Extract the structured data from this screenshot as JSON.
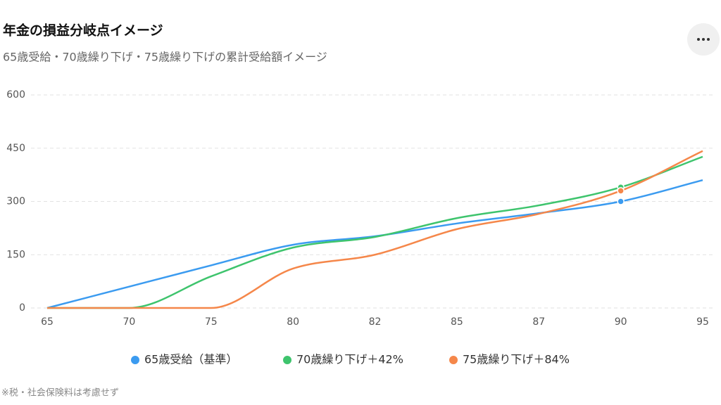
{
  "chart_data": {
    "type": "line",
    "title": "年金の損益分岐点イメージ",
    "subtitle": "65歳受給・70歳繰り下げ・75歳繰り下げの累計受給額イメージ",
    "footnote": "※税・社会保険料は考慮せず",
    "categories": [
      "65",
      "70",
      "75",
      "80",
      "82",
      "85",
      "87",
      "90",
      "95"
    ],
    "series": [
      {
        "name": "65歳受給（基準）",
        "color": "#3b9bf0",
        "values": [
          0,
          60,
          120,
          178,
          202,
          238,
          267,
          300,
          360
        ]
      },
      {
        "name": "70歳繰り下げ＋42%",
        "color": "#3ec46d",
        "values": [
          0,
          0,
          89,
          170,
          200,
          253,
          289,
          340,
          426
        ]
      },
      {
        "name": "75歳繰り下げ＋84%",
        "color": "#f5874a",
        "values": [
          0,
          0,
          0,
          111,
          150,
          222,
          265,
          330,
          442
        ]
      }
    ],
    "highlight": "90",
    "ylim": [
      0,
      600
    ],
    "yticks": [
      0,
      150,
      300,
      450,
      600
    ],
    "grid": true,
    "smooth": true
  }
}
